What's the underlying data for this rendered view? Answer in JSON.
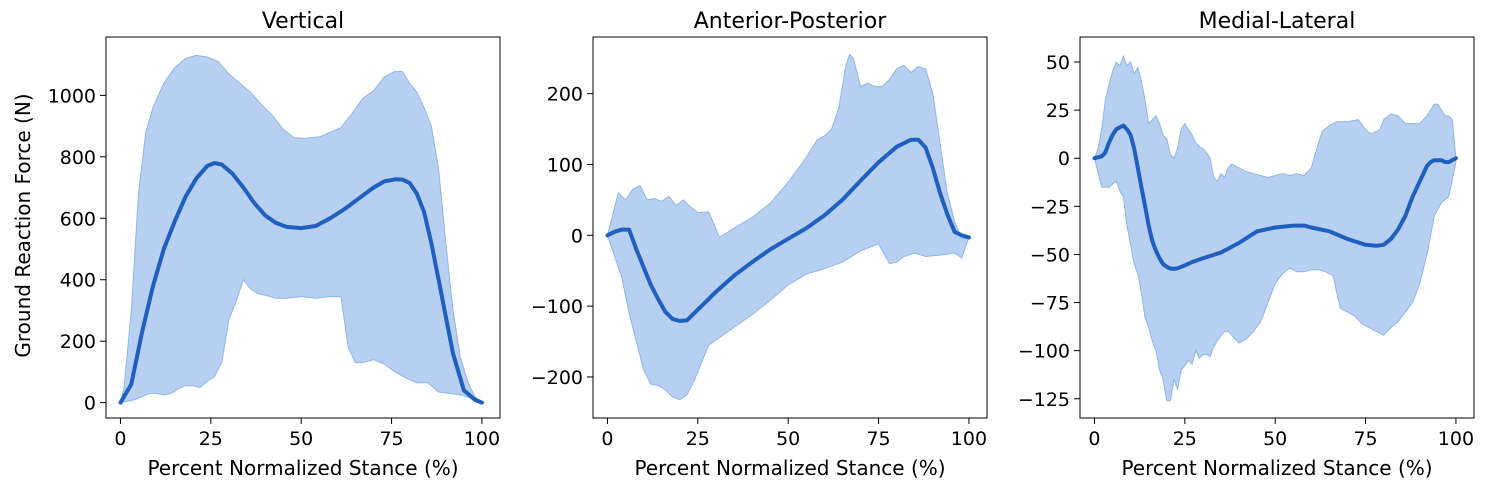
{
  "colors": {
    "band": "#aac8f0",
    "band_edge": "#8fb4e6",
    "mean": "#1f5fbf",
    "axes": "#000000"
  },
  "chart_data": [
    {
      "type": "line",
      "title": "Vertical",
      "xlabel": "Percent Normalized Stance (%)",
      "ylabel": "Ground Reaction Force (N)",
      "xlim": [
        -4,
        105
      ],
      "ylim": [
        -50,
        1190
      ],
      "xticks": [
        0,
        25,
        50,
        75,
        100
      ],
      "yticks": [
        0,
        200,
        400,
        600,
        800,
        1000
      ],
      "ytick_labels": [
        "0",
        "200",
        "400",
        "600",
        "800",
        "1000"
      ],
      "series": [
        {
          "role": "mean",
          "x": [
            0,
            3,
            6,
            9,
            12,
            15,
            18,
            21,
            24,
            26,
            28,
            31,
            34,
            37,
            40,
            43,
            46,
            50,
            54,
            58,
            62,
            66,
            70,
            73,
            76,
            78,
            80,
            82,
            84,
            86,
            88,
            90,
            92,
            95,
            98,
            100
          ],
          "y": [
            0,
            60,
            230,
            380,
            500,
            590,
            670,
            730,
            770,
            780,
            775,
            745,
            700,
            650,
            610,
            585,
            572,
            568,
            575,
            600,
            630,
            665,
            700,
            720,
            727,
            726,
            715,
            680,
            620,
            520,
            400,
            280,
            160,
            40,
            10,
            0
          ]
        },
        {
          "role": "upper",
          "x": [
            0,
            1,
            3,
            5,
            7,
            9,
            12,
            15,
            18,
            21,
            24,
            27,
            30,
            33,
            36,
            39,
            42,
            45,
            48,
            51,
            55,
            58,
            61,
            64,
            67,
            70,
            73,
            76,
            78,
            80,
            82,
            84,
            86,
            88,
            90,
            92,
            94,
            96,
            98,
            100
          ],
          "y": [
            0,
            50,
            300,
            680,
            880,
            960,
            1040,
            1090,
            1120,
            1130,
            1125,
            1110,
            1070,
            1040,
            1010,
            970,
            935,
            890,
            862,
            860,
            865,
            880,
            895,
            940,
            990,
            1015,
            1060,
            1078,
            1078,
            1040,
            1010,
            960,
            900,
            760,
            520,
            300,
            150,
            70,
            20,
            0
          ]
        },
        {
          "role": "lower",
          "x": [
            0,
            2,
            4,
            6,
            8,
            10,
            12,
            14,
            16,
            18,
            20,
            22,
            24,
            26,
            28,
            30,
            32,
            34,
            36,
            38,
            40,
            43,
            46,
            50,
            54,
            58,
            61,
            63,
            65,
            67,
            70,
            73,
            76,
            79,
            82,
            85,
            88,
            91,
            94,
            97,
            100
          ],
          "y": [
            0,
            5,
            10,
            20,
            30,
            30,
            25,
            30,
            45,
            55,
            55,
            50,
            70,
            85,
            130,
            270,
            330,
            400,
            370,
            355,
            350,
            340,
            340,
            345,
            340,
            345,
            345,
            180,
            130,
            130,
            140,
            125,
            100,
            80,
            65,
            65,
            35,
            30,
            25,
            15,
            0
          ]
        }
      ]
    },
    {
      "type": "line",
      "title": "Anterior-Posterior",
      "xlabel": "Percent Normalized Stance (%)",
      "ylabel": "",
      "xlim": [
        -4,
        105
      ],
      "ylim": [
        -258,
        280
      ],
      "xticks": [
        0,
        25,
        50,
        75,
        100
      ],
      "yticks": [
        -200,
        -100,
        0,
        100,
        200
      ],
      "ytick_labels": [
        "−200",
        "−100",
        "0",
        "100",
        "200"
      ],
      "series": [
        {
          "role": "mean",
          "x": [
            0,
            2,
            4,
            6,
            8,
            10,
            12,
            14,
            16,
            18,
            20,
            22,
            24,
            27,
            30,
            35,
            40,
            45,
            50,
            55,
            60,
            65,
            70,
            75,
            80,
            84,
            86,
            88,
            90,
            92,
            94,
            96,
            98,
            100
          ],
          "y": [
            0,
            5,
            8,
            8,
            -20,
            -45,
            -70,
            -90,
            -108,
            -118,
            -121,
            -120,
            -110,
            -95,
            -80,
            -57,
            -38,
            -20,
            -5,
            10,
            28,
            50,
            77,
            103,
            125,
            135,
            135,
            124,
            95,
            60,
            30,
            5,
            0,
            -3
          ]
        },
        {
          "role": "upper",
          "x": [
            0,
            1,
            3,
            5,
            7,
            9,
            11,
            13,
            15,
            17,
            19,
            21,
            23,
            25,
            28,
            31,
            35,
            40,
            45,
            50,
            55,
            58,
            60,
            62,
            64,
            66,
            67,
            68,
            70,
            72,
            74,
            76,
            78,
            80,
            82,
            84,
            86,
            88,
            90,
            92,
            94,
            96,
            98,
            100
          ],
          "y": [
            0,
            20,
            60,
            50,
            65,
            70,
            50,
            52,
            48,
            55,
            42,
            50,
            40,
            32,
            33,
            -3,
            10,
            25,
            45,
            75,
            110,
            135,
            140,
            150,
            180,
            240,
            255,
            250,
            210,
            215,
            210,
            210,
            220,
            235,
            240,
            230,
            238,
            235,
            200,
            130,
            60,
            20,
            -5,
            -3
          ]
        },
        {
          "role": "lower",
          "x": [
            0,
            2,
            4,
            6,
            8,
            10,
            12,
            14,
            16,
            18,
            20,
            22,
            24,
            26,
            28,
            30,
            35,
            40,
            45,
            50,
            55,
            60,
            65,
            70,
            75,
            78,
            80,
            82,
            85,
            88,
            92,
            96,
            98,
            100
          ],
          "y": [
            0,
            -30,
            -60,
            -110,
            -150,
            -190,
            -210,
            -212,
            -218,
            -228,
            -232,
            -225,
            -205,
            -180,
            -155,
            -148,
            -130,
            -112,
            -92,
            -70,
            -55,
            -47,
            -38,
            -22,
            -12,
            -40,
            -38,
            -30,
            -25,
            -30,
            -28,
            -25,
            -32,
            -3
          ]
        }
      ]
    },
    {
      "type": "line",
      "title": "Medial-Lateral",
      "xlabel": "Percent Normalized Stance (%)",
      "ylabel": "",
      "xlim": [
        -4,
        105
      ],
      "ylim": [
        -135,
        63
      ],
      "xticks": [
        0,
        25,
        50,
        75,
        100
      ],
      "yticks": [
        -125,
        -100,
        -75,
        -50,
        -25,
        0,
        25,
        50
      ],
      "ytick_labels": [
        "−125",
        "−100",
        "−75",
        "−50",
        "−25",
        "0",
        "25",
        "50"
      ],
      "series": [
        {
          "role": "mean",
          "x": [
            0,
            2,
            3,
            4,
            5,
            6,
            7,
            8,
            9,
            10,
            11,
            12,
            13,
            14,
            15,
            16,
            17,
            18,
            19,
            20,
            21,
            22,
            23,
            24,
            25,
            27,
            30,
            35,
            40,
            45,
            50,
            55,
            58,
            60,
            65,
            70,
            75,
            78,
            80,
            82,
            84,
            86,
            88,
            90,
            91,
            92,
            93,
            94,
            95,
            96,
            97,
            98,
            100
          ],
          "y": [
            0,
            1,
            3,
            8,
            12,
            15,
            16,
            17,
            15,
            12,
            5,
            -5,
            -15,
            -25,
            -35,
            -43,
            -48,
            -52,
            -55,
            -56.5,
            -57.3,
            -57.5,
            -57.2,
            -56.5,
            -55.7,
            -54,
            -52,
            -49,
            -44,
            -38,
            -36,
            -35,
            -35,
            -36,
            -38,
            -42,
            -45,
            -45.5,
            -45,
            -42,
            -37,
            -30,
            -20,
            -12,
            -8,
            -4,
            -2,
            -1,
            -1,
            -1,
            -2,
            -2,
            0
          ]
        },
        {
          "role": "upper",
          "x": [
            0,
            1,
            2,
            3,
            4,
            5,
            6,
            7,
            8,
            9,
            10,
            11,
            12,
            13,
            14,
            15,
            16,
            17,
            18,
            19,
            20,
            21,
            22,
            23,
            24,
            25,
            26,
            27,
            28,
            29,
            30,
            31,
            32,
            33,
            34,
            35,
            36,
            37,
            38,
            39,
            40,
            42,
            44,
            46,
            48,
            50,
            52,
            54,
            56,
            58,
            60,
            62,
            63,
            65,
            67,
            70,
            73,
            75,
            76,
            77,
            78,
            79,
            80,
            82,
            84,
            86,
            88,
            90,
            91,
            92,
            93,
            94,
            95,
            96,
            97,
            98,
            99,
            100
          ],
          "y": [
            0,
            5,
            15,
            30,
            38,
            45,
            50,
            48,
            53,
            48,
            50,
            44,
            47,
            40,
            30,
            18,
            20,
            22,
            18,
            12,
            10,
            2,
            0,
            5,
            15,
            18,
            15,
            12,
            8,
            6,
            5,
            3,
            0,
            -10,
            -12,
            -8,
            -10,
            -5,
            -3,
            -4,
            -5,
            -7,
            -8,
            -9,
            -10,
            -9,
            -8,
            -9,
            -8,
            -9,
            -5,
            8,
            14,
            17,
            19,
            19,
            20,
            15,
            13,
            13,
            14,
            15,
            20,
            23,
            22,
            18,
            18,
            18,
            20,
            22,
            25,
            28,
            28,
            25,
            22,
            22,
            20,
            0
          ]
        },
        {
          "role": "lower",
          "x": [
            0,
            2,
            4,
            6,
            7,
            8,
            9,
            10,
            11,
            12,
            13,
            14,
            15,
            16,
            17,
            18,
            19,
            20,
            21,
            22,
            23,
            24,
            25,
            26,
            27,
            28,
            29,
            30,
            31,
            32,
            33,
            34,
            35,
            36,
            37,
            38,
            39,
            40,
            42,
            44,
            46,
            48,
            50,
            52,
            54,
            56,
            58,
            60,
            62,
            64,
            66,
            68,
            70,
            72,
            74,
            76,
            78,
            80,
            82,
            84,
            86,
            88,
            90,
            92,
            94,
            96,
            98,
            100
          ],
          "y": [
            0,
            -15,
            -15,
            -12,
            -17,
            -20,
            -35,
            -45,
            -55,
            -60,
            -70,
            -83,
            -88,
            -95,
            -100,
            -110,
            -115,
            -126,
            -126,
            -115,
            -120,
            -110,
            -108,
            -105,
            -107,
            -100,
            -104,
            -102,
            -102,
            -103,
            -98,
            -95,
            -92,
            -90,
            -90,
            -92,
            -94,
            -96,
            -94,
            -90,
            -85,
            -75,
            -65,
            -60,
            -57,
            -59,
            -59,
            -58,
            -58,
            -59,
            -61,
            -78,
            -80,
            -82,
            -86,
            -88,
            -90,
            -92,
            -88,
            -85,
            -80,
            -75,
            -65,
            -50,
            -30,
            -23,
            -20,
            -2
          ]
        }
      ]
    }
  ]
}
